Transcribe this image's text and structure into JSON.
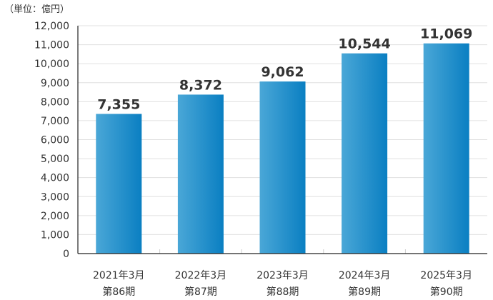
{
  "unit_label": "（単位：億円）",
  "colors": {
    "bar_light": "#4aa7d7",
    "bar_dark": "#0a7fc2",
    "grid": "#e0e0e0",
    "axis": "#222222",
    "text": "#333333"
  },
  "chart_data": {
    "type": "bar",
    "unit": "（単位：億円）",
    "categories": [
      [
        "2021年3月",
        "第86期"
      ],
      [
        "2022年3月",
        "第87期"
      ],
      [
        "2023年3月",
        "第88期"
      ],
      [
        "2024年3月",
        "第89期"
      ],
      [
        "2025年3月",
        "第90期"
      ]
    ],
    "values": [
      7355,
      8372,
      9062,
      10544,
      11069
    ],
    "data_labels": [
      "7,355",
      "8,372",
      "9,062",
      "10,544",
      "11,069"
    ],
    "ylim": [
      0,
      12000
    ],
    "yticks": [
      0,
      1000,
      2000,
      3000,
      4000,
      5000,
      6000,
      7000,
      8000,
      9000,
      10000,
      11000,
      12000
    ],
    "ytick_labels": [
      "0",
      "1,000",
      "2,000",
      "3,000",
      "4,000",
      "5,000",
      "6,000",
      "7,000",
      "8,000",
      "9,000",
      "10,000",
      "11,000",
      "12,000"
    ],
    "grid": true,
    "legend": "none"
  }
}
